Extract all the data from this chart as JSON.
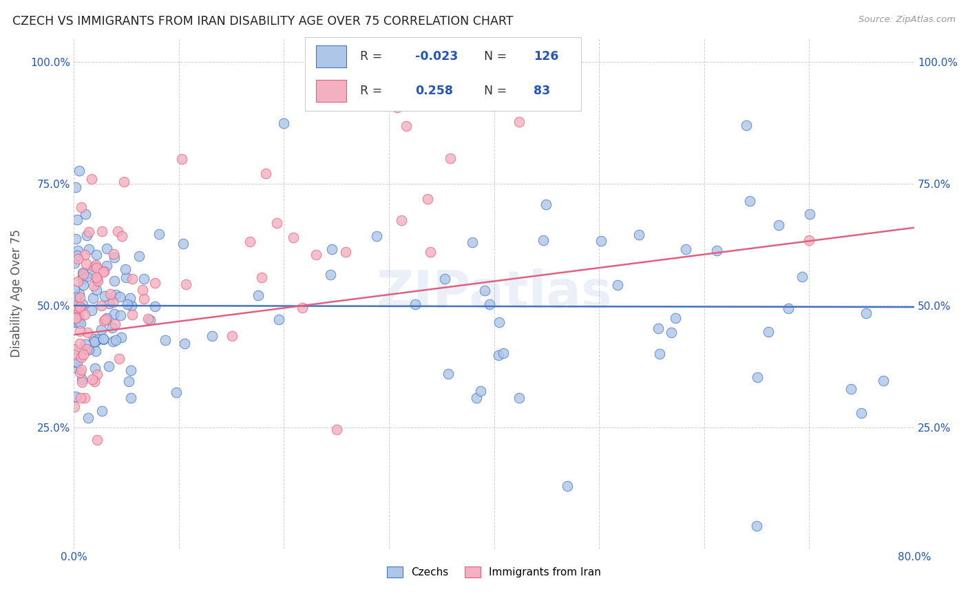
{
  "title": "CZECH VS IMMIGRANTS FROM IRAN DISABILITY AGE OVER 75 CORRELATION CHART",
  "source": "Source: ZipAtlas.com",
  "ylabel": "Disability Age Over 75",
  "xlim": [
    0.0,
    0.8
  ],
  "ylim": [
    0.0,
    1.05
  ],
  "blue_color": "#aec6e8",
  "pink_color": "#f4afc0",
  "blue_line_color": "#4472c4",
  "pink_line_color": "#e06080",
  "blue_R": -0.023,
  "blue_N": 126,
  "pink_R": 0.258,
  "pink_N": 83,
  "legend_color": "#2255bb",
  "watermark": "ZIPatlas",
  "background_color": "#ffffff",
  "grid_color": "#b0b0b0",
  "blue_trend_y0": 0.5,
  "blue_trend_y1": 0.497,
  "pink_trend_y0": 0.44,
  "pink_trend_y1": 0.66
}
